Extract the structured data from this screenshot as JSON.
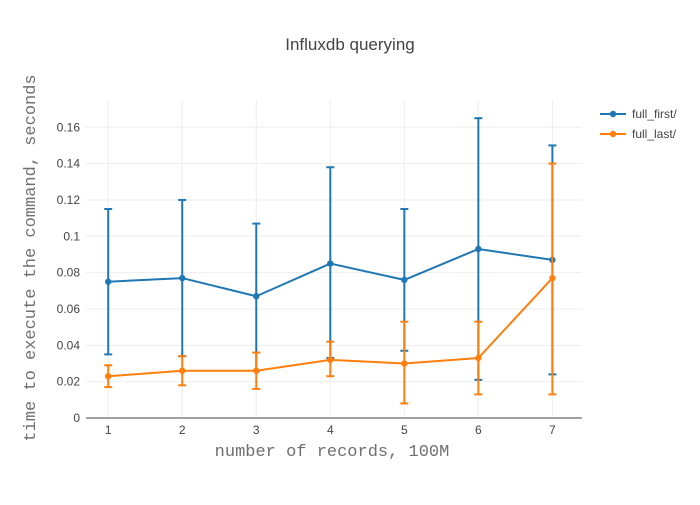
{
  "chart_data": {
    "type": "line",
    "title": "Influxdb querying",
    "xlabel": "number of records, 100M",
    "ylabel": "time to execute the command, seconds",
    "x": [
      1,
      2,
      3,
      4,
      5,
      6,
      7
    ],
    "xlim": [
      0.7,
      7.4
    ],
    "ylim": [
      0,
      0.175
    ],
    "yticks": [
      0,
      0.02,
      0.04,
      0.06,
      0.08,
      0.1,
      0.12,
      0.14,
      0.16
    ],
    "ytick_labels": [
      "0",
      "0.02",
      "0.04",
      "0.06",
      "0.08",
      "0.1",
      "0.12",
      "0.14",
      "0.16"
    ],
    "xtick_labels": [
      "1",
      "2",
      "3",
      "4",
      "5",
      "6",
      "7"
    ],
    "grid": true,
    "legend_position": "top-right",
    "series": [
      {
        "name": "full_first/",
        "color": "#1f77b4",
        "values": [
          0.075,
          0.077,
          0.067,
          0.085,
          0.076,
          0.093,
          0.087
        ],
        "error_low": [
          0.035,
          0.034,
          0.026,
          0.033,
          0.037,
          0.021,
          0.024
        ],
        "error_high": [
          0.115,
          0.12,
          0.107,
          0.138,
          0.115,
          0.165,
          0.15
        ]
      },
      {
        "name": "full_last/",
        "color": "#ff7f0e",
        "values": [
          0.023,
          0.026,
          0.026,
          0.032,
          0.03,
          0.033,
          0.077
        ],
        "error_low": [
          0.017,
          0.018,
          0.016,
          0.023,
          0.008,
          0.013,
          0.013
        ],
        "error_high": [
          0.029,
          0.034,
          0.036,
          0.042,
          0.053,
          0.053,
          0.14
        ]
      }
    ]
  }
}
